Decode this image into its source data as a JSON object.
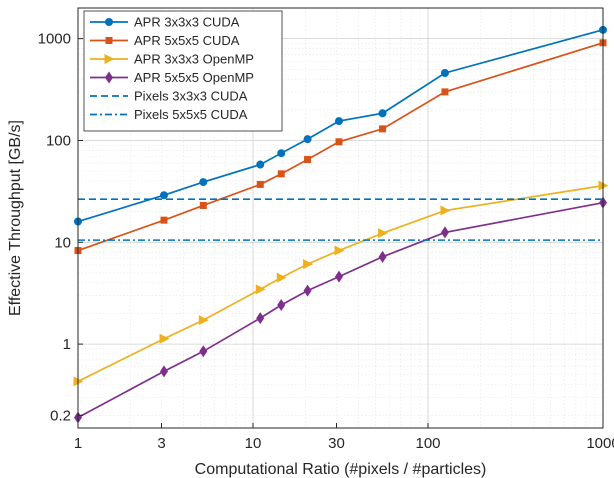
{
  "chart_data": {
    "type": "line",
    "title": "",
    "xlabel": "Computational Ratio (#pixels / #particles)",
    "ylabel": "Effective Throughput [GB/s]",
    "xscale": "log",
    "yscale": "log",
    "xlim": [
      1,
      1000
    ],
    "ylim": [
      0.15,
      2000
    ],
    "xticks": [
      1,
      3,
      10,
      30,
      100,
      1000
    ],
    "xtick_labels": [
      "1",
      "3",
      "10",
      "30",
      "100",
      "1000"
    ],
    "yticks": [
      0.2,
      1,
      10,
      100,
      1000
    ],
    "ytick_labels": [
      "0.2",
      "1",
      "10",
      "100",
      "1000"
    ],
    "grid": true,
    "legend_position": "top-left",
    "x": [
      1,
      3.1,
      5.2,
      11,
      14.5,
      20.5,
      31,
      55,
      125,
      1000
    ],
    "series": [
      {
        "name": "APR 3x3x3 CUDA",
        "color": "#0072BD",
        "marker": "circle",
        "line": "solid",
        "values": [
          16,
          29,
          39,
          58,
          75,
          103,
          155,
          185,
          460,
          1220
        ]
      },
      {
        "name": "APR 5x5x5 CUDA",
        "color": "#D95319",
        "marker": "square",
        "line": "solid",
        "values": [
          8.3,
          16.5,
          23,
          37,
          47,
          65,
          97,
          130,
          300,
          910
        ]
      },
      {
        "name": "APR 3x3x3 OpenMP",
        "color": "#EDB120",
        "marker": "triangle-right",
        "line": "solid",
        "values": [
          0.43,
          1.13,
          1.72,
          3.45,
          4.5,
          6.1,
          8.3,
          12.3,
          20.5,
          36
        ]
      },
      {
        "name": "APR 5x5x5 OpenMP",
        "color": "#7E2F8E",
        "marker": "diamond",
        "line": "solid",
        "values": [
          0.19,
          0.54,
          0.85,
          1.8,
          2.42,
          3.35,
          4.6,
          7.2,
          12.5,
          24.5
        ]
      },
      {
        "name": "Pixels 3x3x3 CUDA",
        "color": "#0072BD",
        "marker": "none",
        "line": "dashed",
        "constant": 26.5
      },
      {
        "name": "Pixels 5x5x5 CUDA",
        "color": "#0072BD",
        "marker": "none",
        "line": "dashdot",
        "constant": 10.5
      }
    ]
  }
}
